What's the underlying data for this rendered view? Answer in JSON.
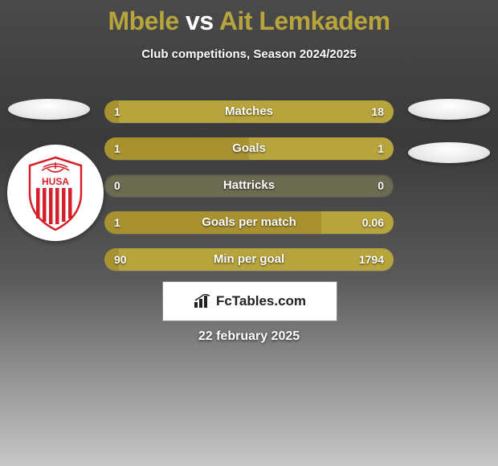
{
  "title": {
    "player1": "Mbele",
    "vs": "vs",
    "player2": "Ait Lemkadem"
  },
  "subtitle": "Club competitions, Season 2024/2025",
  "colors": {
    "player1": "#b8a43c",
    "player2": "#b8a43c",
    "bar_left": "#a89230",
    "bar_right": "#b8a43c",
    "bar_bg": "#6b6b52",
    "title_accent": "#b8a43c",
    "text": "#ffffff"
  },
  "bars": [
    {
      "label": "Matches",
      "left_val": "1",
      "right_val": "18",
      "left_pct": 5,
      "right_pct": 95
    },
    {
      "label": "Goals",
      "left_val": "1",
      "right_val": "1",
      "left_pct": 50,
      "right_pct": 50
    },
    {
      "label": "Hattricks",
      "left_val": "0",
      "right_val": "0",
      "left_pct": 0,
      "right_pct": 0
    },
    {
      "label": "Goals per match",
      "left_val": "1",
      "right_val": "0.06",
      "left_pct": 75,
      "right_pct": 25
    },
    {
      "label": "Min per goal",
      "left_val": "90",
      "right_val": "1794",
      "left_pct": 5,
      "right_pct": 95
    }
  ],
  "brand": "FcTables.com",
  "date": "22 february 2025",
  "badge": {
    "text": "HUSA",
    "stripe_color": "#d4202a",
    "crown_color": "#d4202a"
  }
}
